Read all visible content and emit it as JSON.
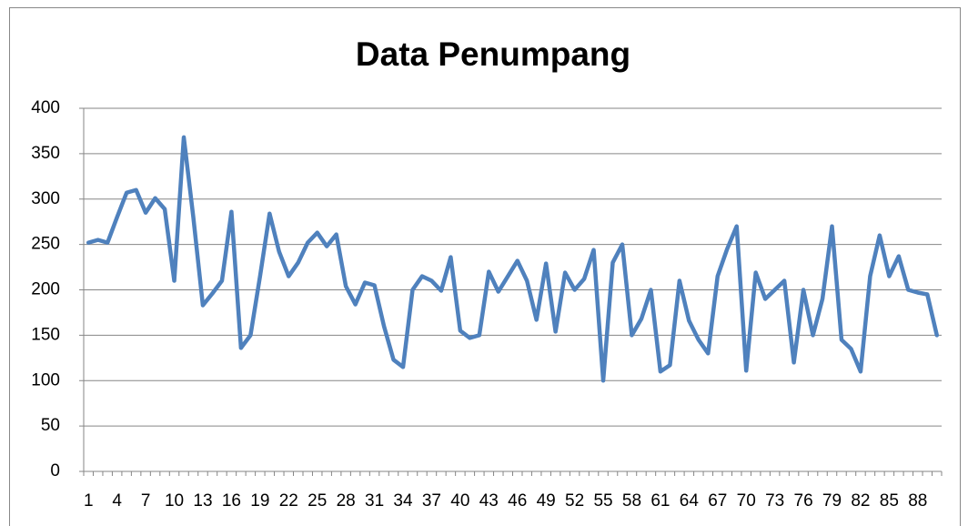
{
  "chart_data": {
    "type": "line",
    "title": "Data Penumpang",
    "categories": [
      1,
      null,
      null,
      4,
      null,
      null,
      7,
      null,
      null,
      10,
      null,
      null,
      13,
      null,
      null,
      16,
      null,
      null,
      19,
      null,
      null,
      22,
      null,
      null,
      25,
      null,
      null,
      28,
      null,
      null,
      31,
      null,
      null,
      34,
      null,
      null,
      37,
      null,
      null,
      40,
      null,
      null,
      43,
      null,
      null,
      46,
      null,
      null,
      49,
      null,
      null,
      52,
      null,
      null,
      55,
      null,
      null,
      58,
      null,
      null,
      61,
      null,
      null,
      64,
      null,
      null,
      67,
      null,
      null,
      70,
      null,
      null,
      73,
      null,
      null,
      76,
      null,
      null,
      79,
      null,
      null,
      82,
      null,
      null,
      85,
      null,
      null,
      88,
      null,
      null
    ],
    "values": [
      252,
      255,
      252,
      280,
      307,
      310,
      285,
      301,
      289,
      210,
      368,
      280,
      183,
      196,
      210,
      286,
      136,
      150,
      215,
      284,
      242,
      215,
      230,
      252,
      263,
      248,
      261,
      204,
      184,
      208,
      205,
      160,
      123,
      115,
      200,
      215,
      210,
      199,
      236,
      155,
      147,
      150,
      220,
      198,
      215,
      232,
      210,
      167,
      229,
      154,
      219,
      200,
      212,
      244,
      100,
      230,
      250,
      150,
      168,
      200,
      110,
      117,
      210,
      166,
      145,
      130,
      215,
      245,
      270,
      111,
      219,
      190,
      200,
      210,
      120,
      200,
      150,
      190,
      270,
      145,
      135,
      110,
      215,
      260,
      215,
      237,
      200,
      197,
      195,
      150
    ],
    "color": "#4f81bd",
    "ylim": [
      0,
      400
    ],
    "yticks": [
      0,
      50,
      100,
      150,
      200,
      250,
      300,
      350,
      400
    ],
    "grid": true
  }
}
